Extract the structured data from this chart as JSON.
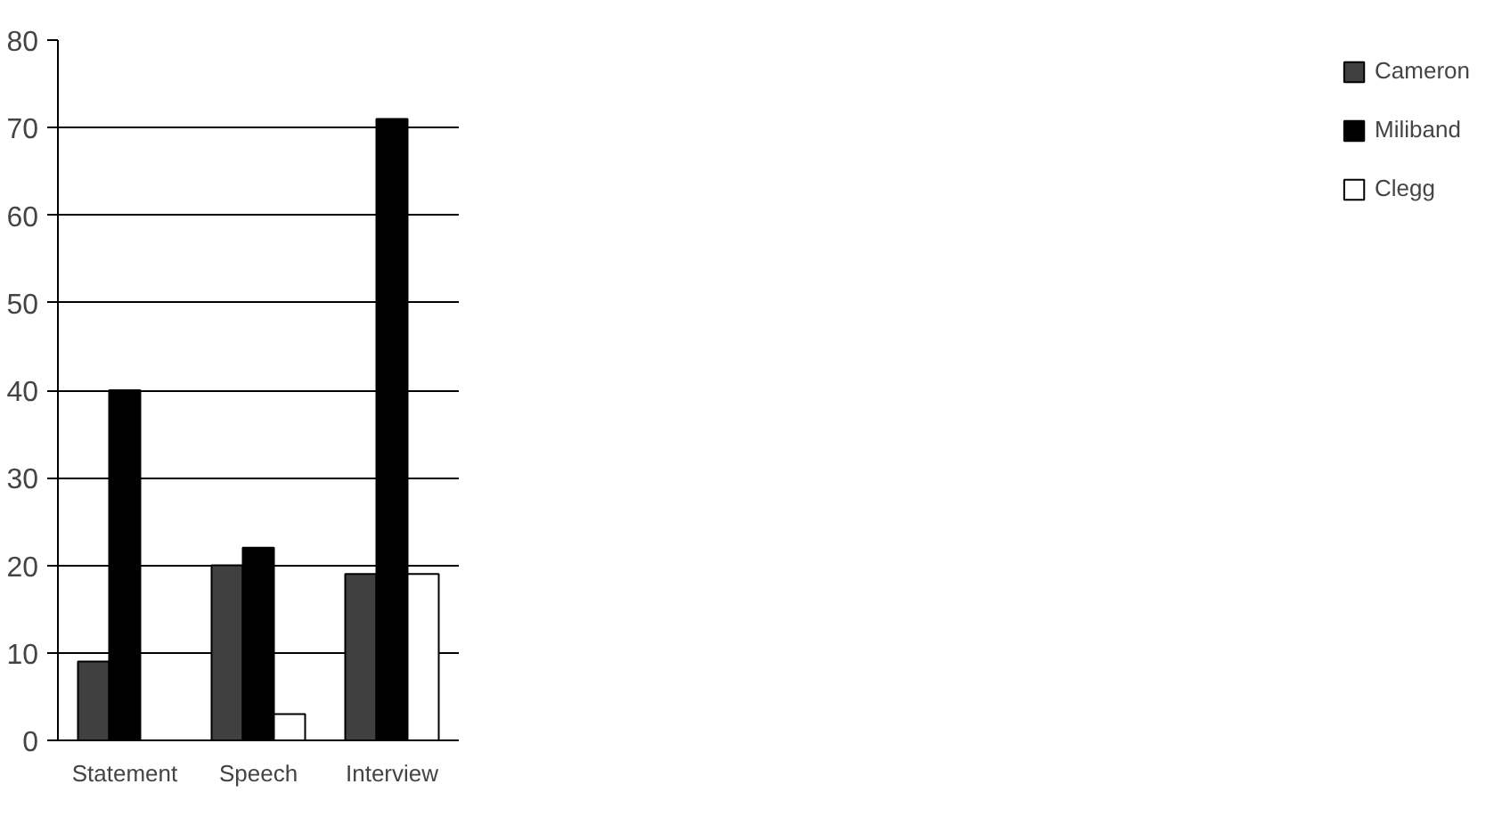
{
  "chart_data": {
    "type": "bar",
    "categories": [
      "Statement",
      "Speech",
      "Interview"
    ],
    "series": [
      {
        "name": "Cameron",
        "color": "#404040",
        "values": [
          9,
          20,
          19
        ]
      },
      {
        "name": "Miliband",
        "color": "#000000",
        "values": [
          40,
          22,
          71
        ]
      },
      {
        "name": "Clegg",
        "color": "#ffffff",
        "values": [
          null,
          3,
          19
        ]
      }
    ],
    "ylim": [
      0,
      80
    ],
    "yticks": [
      0,
      10,
      20,
      30,
      40,
      50,
      60,
      70,
      80
    ],
    "grid": "y",
    "legend": "right"
  }
}
